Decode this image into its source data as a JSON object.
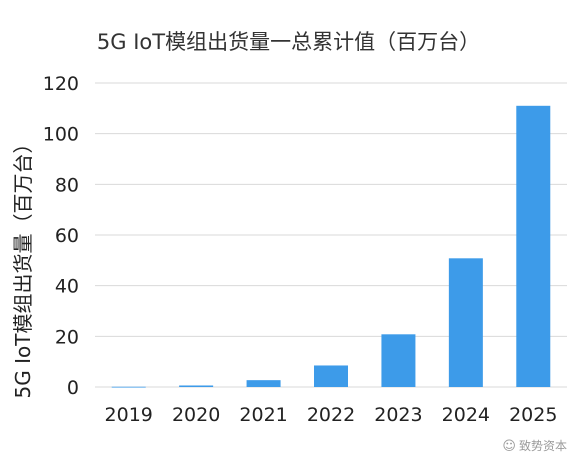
{
  "chart_data": {
    "type": "bar",
    "title": "5G IoT模组出货量一总累计值（百万台）",
    "ylabel": "5G IoT模组出货量（百万台）",
    "xlabel": "",
    "categories": [
      "2019",
      "2020",
      "2021",
      "2022",
      "2023",
      "2024",
      "2025"
    ],
    "values": [
      0.1,
      0.6,
      2.7,
      8.5,
      20.8,
      50.8,
      111.0
    ],
    "ylim": [
      0,
      120
    ],
    "yticks": [
      0,
      20,
      40,
      60,
      80,
      100,
      120
    ],
    "grid": true,
    "legend": "none",
    "bar_color": "#3d9be9",
    "grid_color": "#d9d9d9"
  },
  "watermark": {
    "text": "致势资本"
  }
}
